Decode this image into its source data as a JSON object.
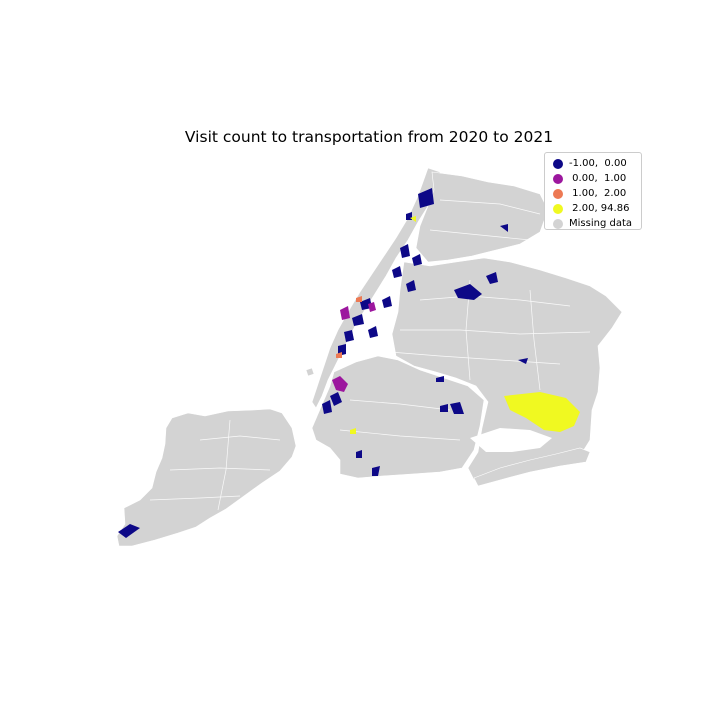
{
  "map": {
    "title": "Visit count to transportation from 2020 to 2021",
    "legend": [
      {
        "label": "-1.00,  0.00",
        "color": "#0d0887"
      },
      {
        "label": " 0.00,  1.00",
        "color": "#9c179e"
      },
      {
        "label": " 1.00,  2.00",
        "color": "#ed7953"
      },
      {
        "label": " 2.00, 94.86",
        "color": "#f0f921"
      },
      {
        "label": "Missing data",
        "color": "#d3d3d3"
      }
    ],
    "missing_color": "#d3d3d3",
    "boundary_color": "#ffffff"
  }
}
